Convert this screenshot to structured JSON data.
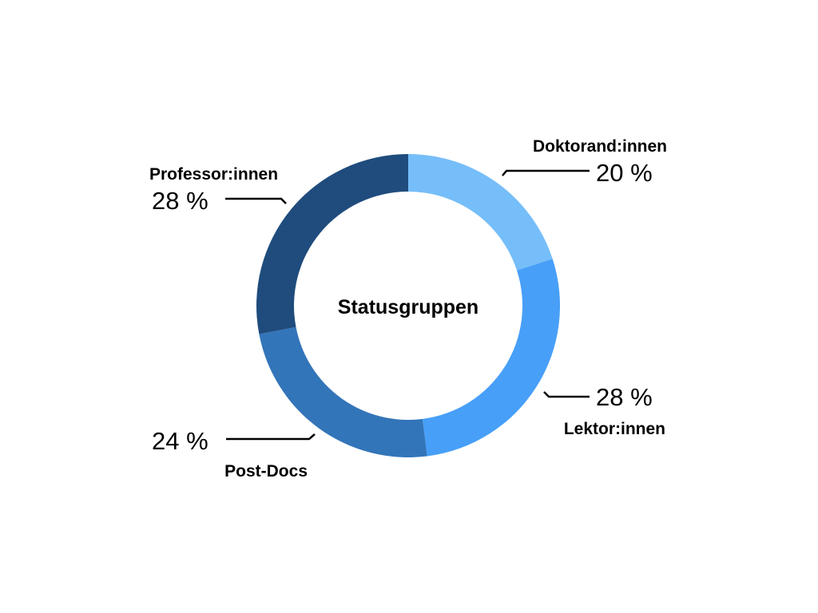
{
  "chart_data": {
    "type": "pie",
    "variant": "donut",
    "title": "Statusgruppen",
    "start": "top",
    "direction": "clockwise",
    "series": [
      {
        "name": "Doktorand:innen",
        "value": 20,
        "label": "20 %",
        "color": "#76BEF9"
      },
      {
        "name": "Lektor:innen",
        "value": 28,
        "label": "28 %",
        "color": "#479FF8"
      },
      {
        "name": "Post-Docs",
        "value": 24,
        "label": "24 %",
        "color": "#3375B9"
      },
      {
        "name": "Professor:innen",
        "value": 28,
        "label": "28 %",
        "color": "#1F4C7D"
      }
    ]
  }
}
